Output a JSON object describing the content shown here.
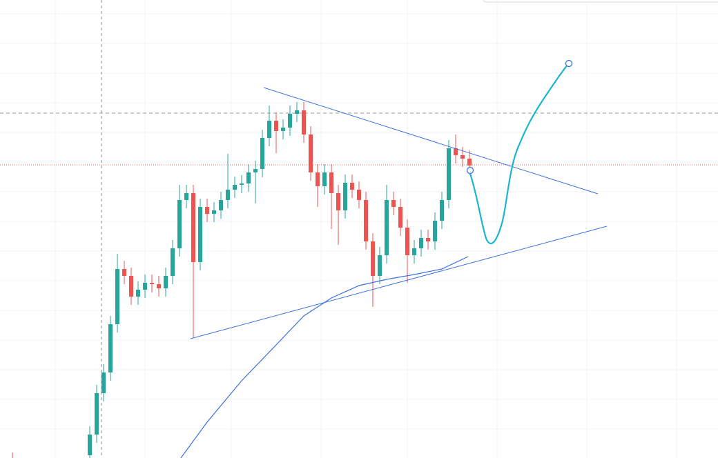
{
  "chart_data": {
    "type": "candlestick",
    "ylim": [
      0,
      664
    ],
    "up_color": "#26a69a",
    "down_color": "#ef5350",
    "open": [
      4,
      34,
      94,
      124,
      194,
      274,
      264,
      234,
      244,
      254,
      252,
      246,
      264,
      304,
      374,
      384,
      284,
      364,
      354,
      359,
      374,
      389,
      396,
      398,
      414,
      419,
      464,
      489,
      474,
      479,
      499,
      504,
      469,
      414,
      394,
      414,
      384,
      359,
      399,
      389,
      374,
      314,
      264,
      294,
      374,
      364,
      334,
      294,
      304,
      319,
      314,
      344,
      374,
      449,
      439,
      434
    ],
    "high": [
      46,
      106,
      136,
      206,
      296,
      286,
      276,
      256,
      266,
      266,
      264,
      276,
      316,
      396,
      396,
      396,
      376,
      376,
      371,
      386,
      441,
      408,
      410,
      426,
      431,
      476,
      511,
      501,
      491,
      511,
      516,
      516,
      481,
      426,
      426,
      426,
      396,
      411,
      411,
      401,
      386,
      326,
      306,
      396,
      386,
      376,
      346,
      316,
      331,
      331,
      356,
      386,
      461,
      469,
      451,
      446
    ],
    "low": [
      0,
      22,
      82,
      112,
      182,
      252,
      222,
      222,
      232,
      240,
      234,
      234,
      252,
      292,
      362,
      174,
      272,
      342,
      342,
      347,
      362,
      377,
      384,
      386,
      369,
      407,
      452,
      442,
      462,
      467,
      487,
      457,
      402,
      364,
      382,
      332,
      309,
      347,
      377,
      362,
      302,
      219,
      252,
      282,
      352,
      322,
      254,
      282,
      292,
      302,
      302,
      332,
      362,
      427,
      422,
      412
    ],
    "close": [
      34,
      94,
      124,
      194,
      274,
      264,
      234,
      244,
      254,
      252,
      246,
      264,
      304,
      374,
      384,
      284,
      364,
      354,
      359,
      374,
      389,
      396,
      398,
      414,
      419,
      464,
      489,
      474,
      479,
      499,
      504,
      469,
      414,
      394,
      414,
      384,
      359,
      399,
      389,
      374,
      314,
      264,
      294,
      374,
      364,
      334,
      294,
      304,
      319,
      314,
      344,
      374,
      449,
      439,
      434,
      424
    ]
  }
}
